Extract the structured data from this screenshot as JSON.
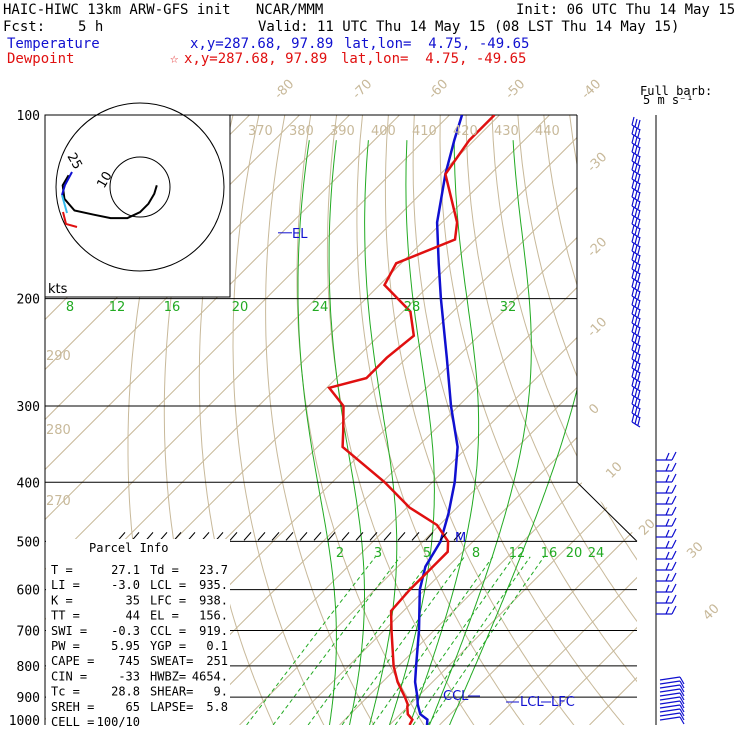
{
  "header": {
    "title": "HAIC-HIWC 13km ARW-GFS init   NCAR/MMM",
    "init": "Init: 06 UTC Thu 14 May 15",
    "fcst_label": "Fcst:",
    "fcst_value": "5 h",
    "valid": "Valid: 11 UTC Thu 14 May 15 (08 LST Thu 14 May 15)",
    "temperature_label": "Temperature",
    "temperature_xy": "x,y=287.68, 97.89",
    "temperature_latlon": "lat,lon=  4.75, -49.65",
    "dewpoint_label": "Dewpoint",
    "dewpoint_marker": "☆",
    "dewpoint_xy": "x,y=287.68, 97.89",
    "dewpoint_latlon": "lat,lon=  4.75, -49.65"
  },
  "wind_barb_legend": {
    "line1": "Full barb:",
    "line2": "5 m s⁻¹"
  },
  "hodograph": {
    "units": "kts",
    "rings": [
      "10",
      "25"
    ]
  },
  "annotations": {
    "el": "EL",
    "m": "M",
    "ccl": "CCL",
    "lcl": "LCL",
    "lfc": "LFC"
  },
  "parcel_info": {
    "title": "Parcel Info",
    "rows": [
      [
        "T  =",
        "27.1",
        "Td =",
        "23.7"
      ],
      [
        "LI =",
        "-3.0",
        "LCL =",
        "935."
      ],
      [
        "K  =",
        "35",
        "LFC =",
        "938."
      ],
      [
        "TT =",
        "44",
        "EL  =",
        "156."
      ],
      [
        "SWI =",
        "-0.3",
        "CCL =",
        "919."
      ],
      [
        "PW =",
        "5.95",
        "YGP =",
        "0.1"
      ],
      [
        "CAPE =",
        "745",
        "SWEAT=",
        "251"
      ],
      [
        "CIN =",
        "-33",
        "HWBZ=",
        "4654."
      ],
      [
        "Tc =",
        "28.8",
        "SHEAR=",
        "9."
      ],
      [
        "SREH =",
        "65",
        "LAPSE=",
        "5.8"
      ],
      [
        "CELL =",
        "100/10",
        "",
        ""
      ]
    ]
  },
  "chart_data": {
    "type": "line",
    "diagram": "skew-T log-P",
    "y_axis": {
      "scale": "log",
      "ylim": [
        1000,
        100
      ],
      "tick_labels": [
        "100",
        "200",
        "300",
        "400",
        "500",
        "600",
        "700",
        "800",
        "900",
        "1000"
      ]
    },
    "temperature_tick_labels": [
      "-80",
      "-70",
      "-60",
      "-50",
      "-40",
      "-30",
      "-20",
      "-10",
      "0",
      "10",
      "20",
      "30",
      "40"
    ],
    "theta_labels": [
      "260",
      "270",
      "280",
      "290",
      "370",
      "380",
      "390",
      "400",
      "410",
      "420",
      "430",
      "440"
    ],
    "mixing_ratio_labels_upper": [
      "8",
      "12",
      "16",
      "20",
      "24",
      "28",
      "32"
    ],
    "mixing_ratio_labels_lower": [
      "2",
      "3",
      "5",
      "8",
      "12",
      "16",
      "20",
      "24"
    ],
    "series": [
      {
        "name": "Temperature",
        "color": "#1010d0",
        "pressure": [
          1000,
          980,
          960,
          925,
          900,
          850,
          800,
          700,
          600,
          550,
          500,
          450,
          400,
          350,
          300,
          250,
          200,
          175,
          150,
          125,
          110,
          100
        ],
        "temperature": [
          27.5,
          26.5,
          24.0,
          21.5,
          20.0,
          16.5,
          13.5,
          7.0,
          -1.0,
          -4.5,
          -6.5,
          -10.5,
          -15.5,
          -22.0,
          -31.5,
          -42.0,
          -55.0,
          -62.5,
          -71.0,
          -79.0,
          -84.0,
          -87.5
        ]
      },
      {
        "name": "Dewpoint",
        "color": "#e01010",
        "pressure": [
          1000,
          980,
          960,
          935,
          925,
          900,
          850,
          800,
          700,
          650,
          600,
          550,
          520,
          500,
          470,
          440,
          400,
          350,
          330,
          300,
          280,
          270,
          250,
          230,
          210,
          190,
          175,
          160,
          150,
          125,
          110,
          100
        ],
        "dewpoint": [
          24.0,
          23.5,
          21.5,
          20.0,
          19.5,
          17.5,
          13.0,
          9.0,
          1.5,
          -2.5,
          -3.0,
          -3.0,
          -3.0,
          -5.0,
          -10.5,
          -19.5,
          -29.5,
          -45.0,
          -48.0,
          -53.0,
          -59.5,
          -54.0,
          -54.0,
          -53.0,
          -58.5,
          -69.0,
          -71.0,
          -64.0,
          -67.0,
          -79.0,
          -81.0,
          -81.0
        ]
      }
    ],
    "hodograph_trace": {
      "u": [
        0.2,
        0.17,
        0.1,
        0.0,
        -0.15,
        -0.35,
        -0.55,
        -0.78,
        -0.9,
        -0.92,
        -0.85,
        -0.87,
        -0.9,
        -0.82
      ],
      "v": [
        0.02,
        -0.08,
        -0.2,
        -0.3,
        -0.37,
        -0.37,
        -0.33,
        -0.28,
        -0.14,
        0.02,
        0.14,
        0.22,
        0.3,
        0.4
      ]
    }
  }
}
